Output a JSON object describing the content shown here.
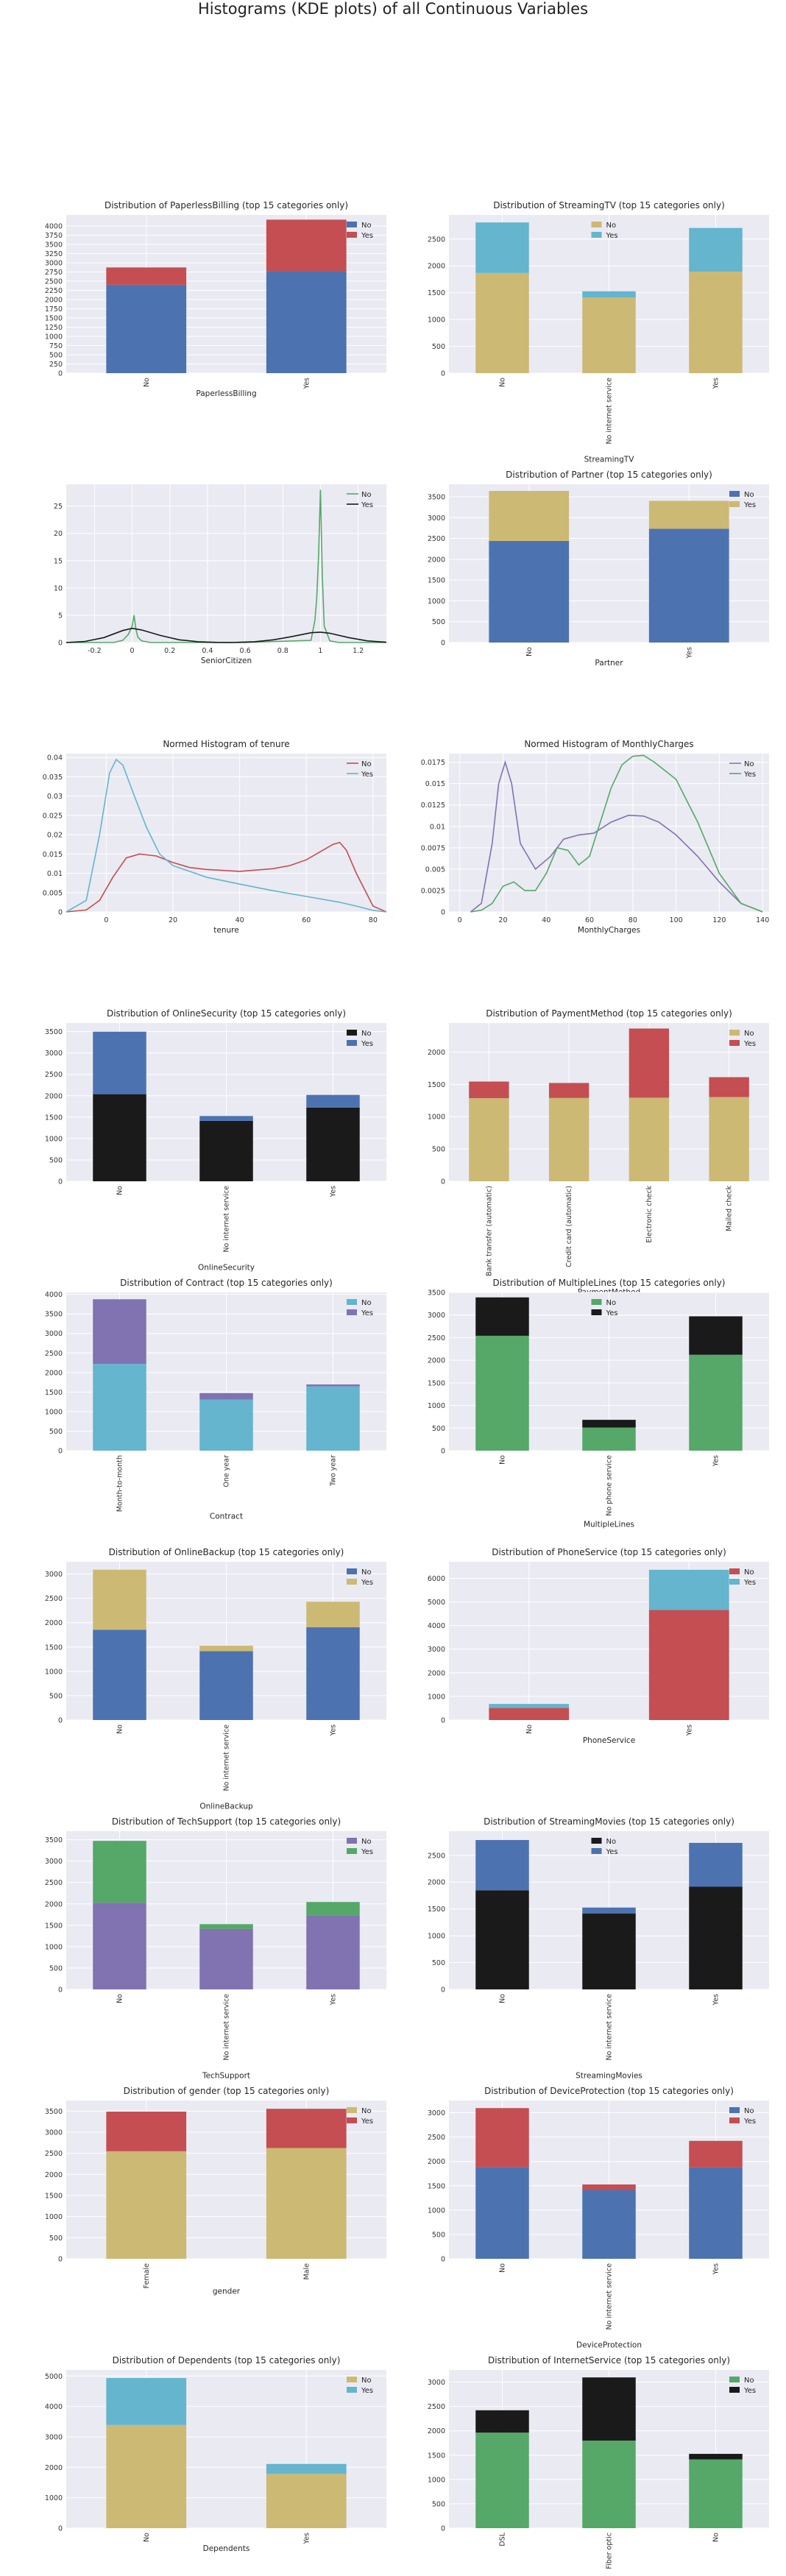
{
  "suptitle": "Histograms (KDE plots) of all Continuous Variables",
  "colors": {
    "blue": "#4c72b0",
    "red": "#c44e52",
    "tan": "#ccb974",
    "cyan": "#64b5cd",
    "green": "#55a868",
    "purple": "#8172b2",
    "black": "#1a1a1a",
    "plot_bg": "#eaeaf2",
    "grid": "#ffffff"
  },
  "chart_data": [
    {
      "type": "bar",
      "stacked": true,
      "title": "Distribution of PaperlessBilling (top 15 categories only)",
      "xlabel": "PaperlessBilling",
      "ylabel": "",
      "categories": [
        "No",
        "Yes"
      ],
      "ylim": [
        0,
        4300
      ],
      "yticks": [
        0,
        250,
        500,
        750,
        1000,
        1250,
        1500,
        1750,
        2000,
        2250,
        2500,
        2750,
        3000,
        3250,
        3500,
        3750,
        4000
      ],
      "legend": "top-right",
      "series": [
        {
          "name": "No",
          "color": "#4c72b0",
          "values": [
            2403,
            2771
          ]
        },
        {
          "name": "Yes",
          "color": "#c44e52",
          "values": [
            469,
            1400
          ]
        }
      ]
    },
    {
      "type": "bar",
      "stacked": true,
      "title": "Distribution of StreamingTV (top 15 categories only)",
      "xlabel": "StreamingTV",
      "ylabel": "",
      "categories": [
        "No",
        "No internet service",
        "Yes"
      ],
      "ylim": [
        0,
        2950
      ],
      "yticks": [
        0,
        500,
        1000,
        1500,
        2000,
        2500
      ],
      "legend": "top-center",
      "series": [
        {
          "name": "No",
          "color": "#ccb974",
          "values": [
            1868,
            1413,
            1893
          ]
        },
        {
          "name": "Yes",
          "color": "#64b5cd",
          "values": [
            942,
            113,
            814
          ]
        }
      ]
    },
    {
      "type": "line",
      "title": "",
      "xlabel": "SeniorCitizen",
      "ylabel": "",
      "xlim": [
        -0.35,
        1.35
      ],
      "ylim": [
        0,
        29
      ],
      "xticks": [
        -0.2,
        0.0,
        0.2,
        0.4,
        0.6,
        0.8,
        1.0,
        1.2
      ],
      "yticks": [
        0,
        5,
        10,
        15,
        20,
        25
      ],
      "legend": "top-right",
      "series": [
        {
          "name": "No",
          "color": "#55a868",
          "x": [
            -0.35,
            -0.1,
            -0.05,
            -0.02,
            0.0,
            0.01,
            0.02,
            0.03,
            0.05,
            0.1,
            0.3,
            0.6,
            0.95,
            0.97,
            0.98,
            0.99,
            1.0,
            1.01,
            1.02,
            1.05,
            1.1,
            1.35
          ],
          "y": [
            0,
            0,
            0.4,
            1.5,
            3.0,
            5.0,
            2.5,
            1.0,
            0.3,
            0,
            0,
            0,
            0.4,
            4,
            8,
            16,
            28,
            12,
            3,
            0.3,
            0,
            0
          ]
        },
        {
          "name": "Yes",
          "color": "#1a1a1a",
          "x": [
            -0.35,
            -0.25,
            -0.15,
            -0.05,
            0.0,
            0.05,
            0.15,
            0.25,
            0.35,
            0.45,
            0.5,
            0.55,
            0.65,
            0.75,
            0.85,
            0.95,
            1.0,
            1.05,
            1.15,
            1.25,
            1.35
          ],
          "y": [
            0,
            0.2,
            0.9,
            2.2,
            2.6,
            2.3,
            1.3,
            0.5,
            0.15,
            0.03,
            0.02,
            0.03,
            0.15,
            0.5,
            1.1,
            1.8,
            1.9,
            1.7,
            0.9,
            0.3,
            0.05
          ]
        }
      ]
    },
    {
      "type": "bar",
      "stacked": true,
      "title": "Distribution of Partner (top 15 categories only)",
      "xlabel": "Partner",
      "ylabel": "",
      "categories": [
        "No",
        "Yes"
      ],
      "ylim": [
        0,
        3800
      ],
      "yticks": [
        0,
        500,
        1000,
        1500,
        2000,
        2500,
        3000,
        3500
      ],
      "legend": "top-right",
      "series": [
        {
          "name": "No",
          "color": "#4c72b0",
          "values": [
            2441,
            2733
          ]
        },
        {
          "name": "Yes",
          "color": "#ccb974",
          "values": [
            1200,
            669
          ]
        }
      ]
    },
    {
      "type": "line",
      "title": "Normed Histogram of tenure",
      "xlabel": "tenure",
      "ylabel": "",
      "xlim": [
        -12,
        84
      ],
      "ylim": [
        0,
        0.041
      ],
      "xticks": [
        0,
        20,
        40,
        60,
        80
      ],
      "yticks": [
        0,
        0.005,
        0.01,
        0.015,
        0.02,
        0.025,
        0.03,
        0.035,
        0.04
      ],
      "legend": "top-right",
      "series": [
        {
          "name": "No",
          "color": "#c44e52",
          "x": [
            -12,
            -6,
            -2,
            2,
            6,
            10,
            15,
            20,
            25,
            30,
            40,
            50,
            55,
            60,
            65,
            68,
            70,
            72,
            75,
            80,
            84
          ],
          "y": [
            0,
            0.0005,
            0.003,
            0.009,
            0.014,
            0.015,
            0.0145,
            0.0128,
            0.0115,
            0.011,
            0.0105,
            0.0112,
            0.012,
            0.0135,
            0.016,
            0.0175,
            0.018,
            0.016,
            0.01,
            0.0015,
            0
          ],
          "y_note": ""
        },
        {
          "name": "Yes",
          "color": "#64b5cd",
          "x": [
            -12,
            -6,
            -2,
            1,
            3,
            5,
            8,
            12,
            16,
            20,
            25,
            30,
            40,
            50,
            60,
            70,
            75,
            80,
            84
          ],
          "y": [
            0,
            0.003,
            0.02,
            0.036,
            0.0395,
            0.038,
            0.031,
            0.022,
            0.015,
            0.012,
            0.0105,
            0.009,
            0.0072,
            0.0055,
            0.004,
            0.0025,
            0.0015,
            0.0004,
            0
          ]
        }
      ]
    },
    {
      "type": "line",
      "title": "Normed Histogram of MonthlyCharges",
      "xlabel": "MonthlyCharges",
      "ylabel": "",
      "xlim": [
        -5,
        143
      ],
      "ylim": [
        0,
        0.0185
      ],
      "xticks": [
        0,
        20,
        40,
        60,
        80,
        100,
        120,
        140
      ],
      "yticks": [
        0,
        0.0025,
        0.005,
        0.0075,
        0.01,
        0.0125,
        0.015,
        0.0175
      ],
      "legend": "top-right",
      "series": [
        {
          "name": "No",
          "color": "#8172b2",
          "x": [
            5,
            10,
            15,
            18,
            21,
            24,
            28,
            35,
            42,
            48,
            55,
            62,
            70,
            78,
            85,
            92,
            100,
            110,
            120,
            130,
            140
          ],
          "y": [
            0,
            0.001,
            0.008,
            0.015,
            0.0175,
            0.015,
            0.008,
            0.005,
            0.0065,
            0.0085,
            0.009,
            0.0092,
            0.0105,
            0.0113,
            0.0112,
            0.0105,
            0.009,
            0.0065,
            0.0035,
            0.001,
            0
          ],
          "y_note": ""
        },
        {
          "name": "Yes",
          "color": "#55a868",
          "x": [
            5,
            10,
            15,
            20,
            25,
            30,
            35,
            40,
            45,
            50,
            55,
            60,
            70,
            75,
            80,
            85,
            90,
            95,
            100,
            110,
            120,
            130,
            140
          ],
          "y": [
            0,
            0.0002,
            0.001,
            0.003,
            0.0035,
            0.0025,
            0.0025,
            0.0045,
            0.0075,
            0.0072,
            0.0055,
            0.0065,
            0.0145,
            0.0172,
            0.0182,
            0.0183,
            0.0175,
            0.0165,
            0.0155,
            0.0105,
            0.0045,
            0.001,
            0
          ]
        }
      ]
    },
    {
      "type": "bar",
      "stacked": true,
      "title": "Distribution of OnlineSecurity (top 15 categories only)",
      "xlabel": "OnlineSecurity",
      "ylabel": "",
      "categories": [
        "No",
        "No internet service",
        "Yes"
      ],
      "ylim": [
        0,
        3700
      ],
      "yticks": [
        0,
        500,
        1000,
        1500,
        2000,
        2500,
        3000,
        3500
      ],
      "legend": "top-right",
      "series": [
        {
          "name": "No",
          "color": "#1a1a1a",
          "values": [
            2037,
            1413,
            1724
          ]
        },
        {
          "name": "Yes",
          "color": "#4c72b0",
          "values": [
            1461,
            113,
            295
          ]
        }
      ]
    },
    {
      "type": "bar",
      "stacked": true,
      "title": "Distribution of PaymentMethod (top 15 categories only)",
      "xlabel": "PaymentMethod",
      "ylabel": "",
      "categories": [
        "Bank transfer (automatic)",
        "Credit card (automatic)",
        "Electronic check",
        "Mailed check"
      ],
      "ylim": [
        0,
        2450
      ],
      "yticks": [
        0,
        500,
        1000,
        1500,
        2000
      ],
      "legend": "top-right",
      "series": [
        {
          "name": "No",
          "color": "#ccb974",
          "values": [
            1286,
            1290,
            1294,
            1304
          ]
        },
        {
          "name": "Yes",
          "color": "#c44e52",
          "values": [
            258,
            232,
            1071,
            308
          ]
        }
      ]
    },
    {
      "type": "bar",
      "stacked": true,
      "title": "Distribution of Contract (top 15 categories only)",
      "xlabel": "Contract",
      "ylabel": "",
      "categories": [
        "Month-to-month",
        "One year",
        "Two year"
      ],
      "ylim": [
        0,
        4050
      ],
      "yticks": [
        0,
        500,
        1000,
        1500,
        2000,
        2500,
        3000,
        3500,
        4000
      ],
      "legend": "top-right",
      "series": [
        {
          "name": "No",
          "color": "#64b5cd",
          "values": [
            2220,
            1307,
            1647
          ]
        },
        {
          "name": "Yes",
          "color": "#8172b2",
          "values": [
            1655,
            166,
            48
          ]
        }
      ]
    },
    {
      "type": "bar",
      "stacked": true,
      "title": "Distribution of MultipleLines (top 15 categories only)",
      "xlabel": "MultipleLines",
      "ylabel": "",
      "categories": [
        "No",
        "No phone service",
        "Yes"
      ],
      "ylim": [
        0,
        3500
      ],
      "yticks": [
        0,
        500,
        1000,
        1500,
        2000,
        2500,
        3000,
        3500
      ],
      "legend": "top-center",
      "series": [
        {
          "name": "No",
          "color": "#55a868",
          "values": [
            2541,
            512,
            2121
          ]
        },
        {
          "name": "Yes",
          "color": "#1a1a1a",
          "values": [
            849,
            170,
            850
          ]
        }
      ]
    },
    {
      "type": "bar",
      "stacked": true,
      "title": "Distribution of OnlineBackup (top 15 categories only)",
      "xlabel": "OnlineBackup",
      "ylabel": "",
      "categories": [
        "No",
        "No internet service",
        "Yes"
      ],
      "ylim": [
        0,
        3250
      ],
      "yticks": [
        0,
        500,
        1000,
        1500,
        2000,
        2500,
        3000
      ],
      "legend": "top-right",
      "series": [
        {
          "name": "No",
          "color": "#4c72b0",
          "values": [
            1855,
            1413,
            1906
          ]
        },
        {
          "name": "Yes",
          "color": "#ccb974",
          "values": [
            1233,
            113,
            523
          ]
        }
      ]
    },
    {
      "type": "bar",
      "stacked": true,
      "title": "Distribution of PhoneService (top 15 categories only)",
      "xlabel": "PhoneService",
      "ylabel": "",
      "categories": [
        "No",
        "Yes"
      ],
      "ylim": [
        0,
        6700
      ],
      "yticks": [
        0,
        1000,
        2000,
        3000,
        4000,
        5000,
        6000
      ],
      "legend": "top-right",
      "series": [
        {
          "name": "No",
          "color": "#c44e52",
          "values": [
            512,
            4662
          ]
        },
        {
          "name": "Yes",
          "color": "#64b5cd",
          "values": [
            170,
            1699
          ]
        }
      ]
    },
    {
      "type": "bar",
      "stacked": true,
      "title": "Distribution of TechSupport (top 15 categories only)",
      "xlabel": "TechSupport",
      "ylabel": "",
      "categories": [
        "No",
        "No internet service",
        "Yes"
      ],
      "ylim": [
        0,
        3700
      ],
      "yticks": [
        0,
        500,
        1000,
        1500,
        2000,
        2500,
        3000,
        3500
      ],
      "legend": "top-right",
      "series": [
        {
          "name": "No",
          "color": "#8172b2",
          "values": [
            2027,
            1413,
            1734
          ]
        },
        {
          "name": "Yes",
          "color": "#55a868",
          "values": [
            1446,
            113,
            310
          ]
        }
      ]
    },
    {
      "type": "bar",
      "stacked": true,
      "title": "Distribution of StreamingMovies (top 15 categories only)",
      "xlabel": "StreamingMovies",
      "ylabel": "",
      "categories": [
        "No",
        "No internet service",
        "Yes"
      ],
      "ylim": [
        0,
        2950
      ],
      "yticks": [
        0,
        500,
        1000,
        1500,
        2000,
        2500
      ],
      "legend": "top-center",
      "series": [
        {
          "name": "No",
          "color": "#1a1a1a",
          "values": [
            1847,
            1413,
            1914
          ]
        },
        {
          "name": "Yes",
          "color": "#4c72b0",
          "values": [
            938,
            113,
            818
          ]
        }
      ]
    },
    {
      "type": "bar",
      "stacked": true,
      "title": "Distribution of gender (top 15 categories only)",
      "xlabel": "gender",
      "ylabel": "",
      "categories": [
        "Female",
        "Male"
      ],
      "ylim": [
        0,
        3750
      ],
      "yticks": [
        0,
        500,
        1000,
        1500,
        2000,
        2500,
        3000,
        3500
      ],
      "legend": "top-right",
      "series": [
        {
          "name": "No",
          "color": "#ccb974",
          "values": [
            2549,
            2625
          ]
        },
        {
          "name": "Yes",
          "color": "#c44e52",
          "values": [
            939,
            930
          ]
        }
      ]
    },
    {
      "type": "bar",
      "stacked": true,
      "title": "Distribution of DeviceProtection (top 15 categories only)",
      "xlabel": "DeviceProtection",
      "ylabel": "",
      "categories": [
        "No",
        "No internet service",
        "Yes"
      ],
      "ylim": [
        0,
        3250
      ],
      "yticks": [
        0,
        500,
        1000,
        1500,
        2000,
        2500,
        3000
      ],
      "legend": "top-right",
      "series": [
        {
          "name": "No",
          "color": "#4c72b0",
          "values": [
            1884,
            1413,
            1877
          ]
        },
        {
          "name": "Yes",
          "color": "#c44e52",
          "values": [
            1211,
            113,
            545
          ]
        }
      ]
    },
    {
      "type": "bar",
      "stacked": true,
      "title": "Distribution of Dependents (top 15 categories only)",
      "xlabel": "Dependents",
      "ylabel": "",
      "categories": [
        "No",
        "Yes"
      ],
      "ylim": [
        0,
        5200
      ],
      "yticks": [
        0,
        1000,
        2000,
        3000,
        4000,
        5000
      ],
      "legend": "top-right",
      "series": [
        {
          "name": "No",
          "color": "#ccb974",
          "values": [
            3390,
            1784
          ]
        },
        {
          "name": "Yes",
          "color": "#64b5cd",
          "values": [
            1543,
            326
          ]
        }
      ]
    },
    {
      "type": "bar",
      "stacked": true,
      "title": "Distribution of InternetService (top 15 categories only)",
      "xlabel": "InternetService",
      "ylabel": "",
      "categories": [
        "DSL",
        "Fiber optic",
        "No"
      ],
      "ylim": [
        0,
        3250
      ],
      "yticks": [
        0,
        500,
        1000,
        1500,
        2000,
        2500,
        3000
      ],
      "legend": "top-right",
      "series": [
        {
          "name": "No",
          "color": "#55a868",
          "values": [
            1962,
            1799,
            1413
          ]
        },
        {
          "name": "Yes",
          "color": "#1a1a1a",
          "values": [
            459,
            1297,
            113
          ]
        }
      ]
    }
  ]
}
